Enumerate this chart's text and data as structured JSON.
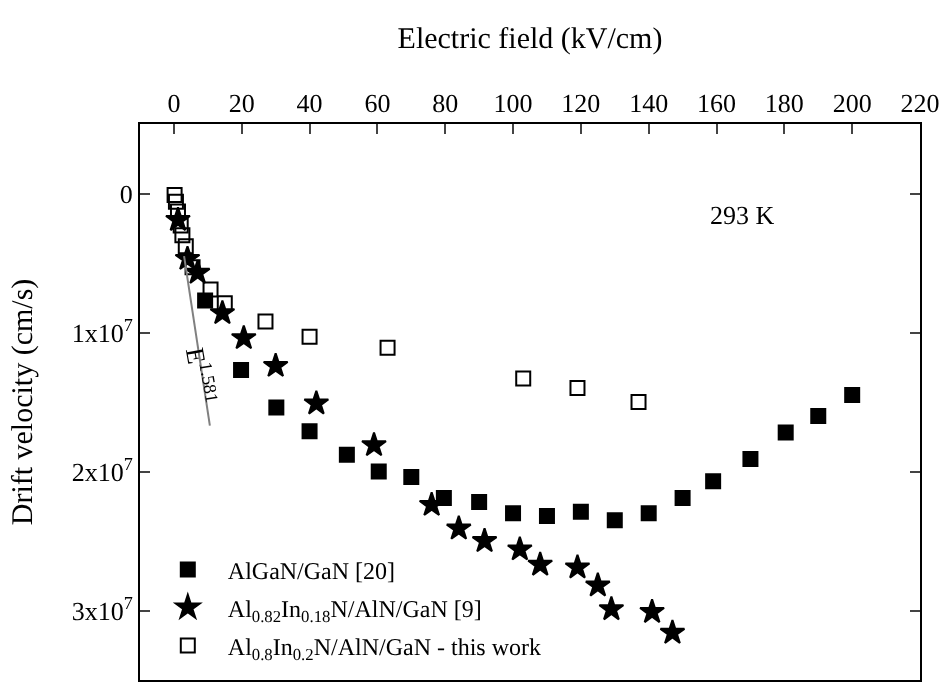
{
  "chart_data": {
    "type": "scatter",
    "xlabel": "Electric field (kV/cm)",
    "ylabel": "Drift velocity (cm/s)",
    "xlim": [
      -10,
      220
    ],
    "xticks": [
      0,
      20,
      40,
      60,
      80,
      100,
      120,
      140,
      160,
      180,
      200,
      220
    ],
    "ylim": [
      35000000.0,
      -5000000.0
    ],
    "yticks": [
      {
        "value": 0,
        "label": "0"
      },
      {
        "value": 10000000.0,
        "label": "1x10$^{7}$"
      },
      {
        "value": 20000000.0,
        "label": "2x10$^{7}$"
      },
      {
        "value": 30000000.0,
        "label": "3x10$^{7}$"
      }
    ],
    "legend": "bottom left",
    "annotations": [
      "293 K",
      {
        "text": "E$^{1.581}$",
        "x": 8,
        "y": 13000000.0
      }
    ],
    "series": [
      {
        "name": "AlGaN/GaN [20]",
        "color": "#000000",
        "marker": "square",
        "x": [
          9.2,
          19.8,
          30.2,
          40,
          51,
          60.4,
          70,
          79.6,
          90,
          100,
          110,
          120,
          130,
          140,
          150,
          159,
          170,
          180.4,
          190,
          200
        ],
        "values": [
          7700000.0,
          12700000.0,
          15400000.0,
          17100000.0,
          18800000.0,
          20000000.0,
          20400000.0,
          21900000.0,
          22200000.0,
          23000000.0,
          23200000.0,
          22900000.0,
          23500000.0,
          23000000.0,
          21900000.0,
          20700000.0,
          19100000.0,
          17200000.0,
          16000000.0,
          14500000.0
        ]
      },
      {
        "name": "Al$_{0.82}$In$_{0.18}$N/AlN/GaN [9]",
        "color": "#000000",
        "marker": "star",
        "x": [
          1.2,
          4,
          7,
          14.3,
          20.6,
          30,
          42,
          59,
          76,
          84,
          91.6,
          102,
          108,
          119,
          125,
          129,
          141,
          147
        ],
        "values": [
          1900000.0,
          4700000.0,
          5700000.0,
          8600000.0,
          10400000.0,
          12400000.0,
          15100000.0,
          18100000.0,
          22400000.0,
          24100000.0,
          25000000.0,
          25600000.0,
          26700000.0,
          26900000.0,
          28200000.0,
          29900000.0,
          30100000.0,
          31600000.0
        ]
      },
      {
        "name": "Al$_{0.8}$In$_{0.2}$N/AlN/GaN - this work",
        "color": "#000000",
        "marker": "square-open",
        "x": [
          0.2,
          0.6,
          1.2,
          2,
          2.5,
          3.5,
          5.5,
          10.8,
          15,
          27,
          40,
          63,
          103,
          119,
          137
        ],
        "values": [
          100000.0,
          600000.0,
          1300000.0,
          2300000.0,
          3000000.0,
          3800000.0,
          5300000.0,
          6900000.0,
          7900000.0,
          9200000.0,
          10300000.0,
          11100000.0,
          13300000.0,
          14000000.0,
          15000000.0
        ]
      },
      {
        "type": "line",
        "color": "#808080",
        "marker": "none",
        "x": [
          3,
          10.6
        ],
        "values": [
          4500000.0,
          16700000.0
        ]
      }
    ]
  }
}
